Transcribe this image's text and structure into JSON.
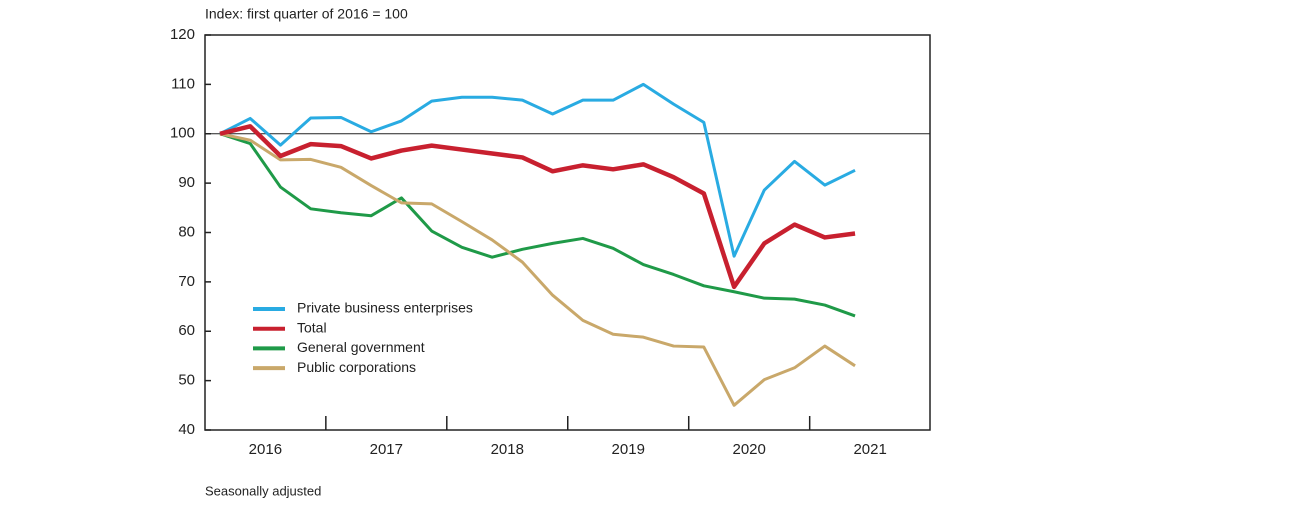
{
  "chart_data": {
    "type": "line",
    "subtitle": "Index: first quarter of 2016 = 100",
    "note": "Seasonally adjusted",
    "categories": [
      "2016",
      null,
      null,
      null,
      "2017",
      null,
      null,
      null,
      "2018",
      null,
      null,
      null,
      "2019",
      null,
      null,
      null,
      "2020",
      null,
      null,
      null,
      "2021",
      null
    ],
    "ylim": [
      40,
      120
    ],
    "yticks": [
      40,
      50,
      60,
      70,
      80,
      90,
      100,
      110,
      120
    ],
    "reference_line": 100,
    "legend": "lower-left",
    "series": [
      {
        "name": "Private business enterprises",
        "color": "#29abe2",
        "values": [
          100,
          103.1,
          97.7,
          103.2,
          103.3,
          100.4,
          102.6,
          106.6,
          107.4,
          107.4,
          106.8,
          104.0,
          106.8,
          106.8,
          110,
          106,
          102.3,
          75.2,
          88.6,
          94.4,
          89.6,
          92.6
        ]
      },
      {
        "name": "Total",
        "color": "#c8202f",
        "values": [
          100,
          101.5,
          95.5,
          97.9,
          97.5,
          95,
          96.6,
          97.6,
          96.8,
          96,
          95.2,
          92.4,
          93.6,
          92.8,
          93.8,
          91.2,
          87.9,
          69,
          77.8,
          81.6,
          79,
          79.8
        ]
      },
      {
        "name": "General government",
        "color": "#1f9a48",
        "values": [
          100,
          98,
          89.2,
          84.8,
          84,
          83.4,
          87,
          80.3,
          77,
          75,
          76.6,
          77.8,
          78.8,
          76.8,
          73.5,
          71.5,
          69.2,
          68,
          66.7,
          66.5,
          65.3,
          63.1
        ]
      },
      {
        "name": "Public corporations",
        "color": "#c9a86a",
        "values": [
          100,
          98.7,
          94.7,
          94.8,
          93.2,
          89.5,
          86,
          85.8,
          82.2,
          78.5,
          74,
          67.3,
          62.2,
          59.4,
          58.8,
          57,
          56.8,
          45,
          50.2,
          52.6,
          57,
          53
        ]
      }
    ]
  }
}
